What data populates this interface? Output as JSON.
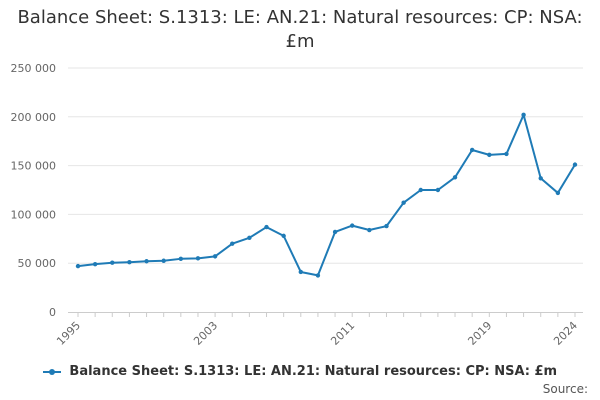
{
  "chart_data": {
    "type": "line",
    "title": "Balance Sheet: S.1313: LE: AN.21: Natural resources: CP: NSA: £m",
    "xlabel": "",
    "ylabel": "",
    "ylim": [
      0,
      250000
    ],
    "y_ticks": [
      0,
      50000,
      100000,
      150000,
      200000,
      250000
    ],
    "y_tick_labels": [
      "0",
      "50 000",
      "100 000",
      "150 000",
      "200 000",
      "250 000"
    ],
    "x_ticks": [
      1995,
      2003,
      2011,
      2019,
      2024
    ],
    "x_tick_labels": [
      "1995",
      "2003",
      "2011",
      "2019",
      "2024"
    ],
    "grid": true,
    "legend_position": "bottom",
    "series": [
      {
        "name": "Balance Sheet: S.1313: LE: AN.21: Natural resources: CP: NSA: £m",
        "color": "#1f7bb6",
        "x": [
          1995,
          1996,
          1997,
          1998,
          1999,
          2000,
          2001,
          2002,
          2003,
          2004,
          2005,
          2006,
          2007,
          2008,
          2009,
          2010,
          2011,
          2012,
          2013,
          2014,
          2015,
          2016,
          2017,
          2018,
          2019,
          2020,
          2021,
          2022,
          2023,
          2024
        ],
        "values": [
          47000,
          49000,
          50500,
          51000,
          52000,
          52500,
          54500,
          55000,
          57000,
          70000,
          76000,
          87000,
          78000,
          41000,
          37500,
          82000,
          88500,
          84000,
          88000,
          112000,
          125000,
          125000,
          138000,
          166000,
          161000,
          162000,
          202000,
          137000,
          122000,
          151000
        ]
      }
    ]
  },
  "footer": {
    "source_label": "Source:"
  }
}
